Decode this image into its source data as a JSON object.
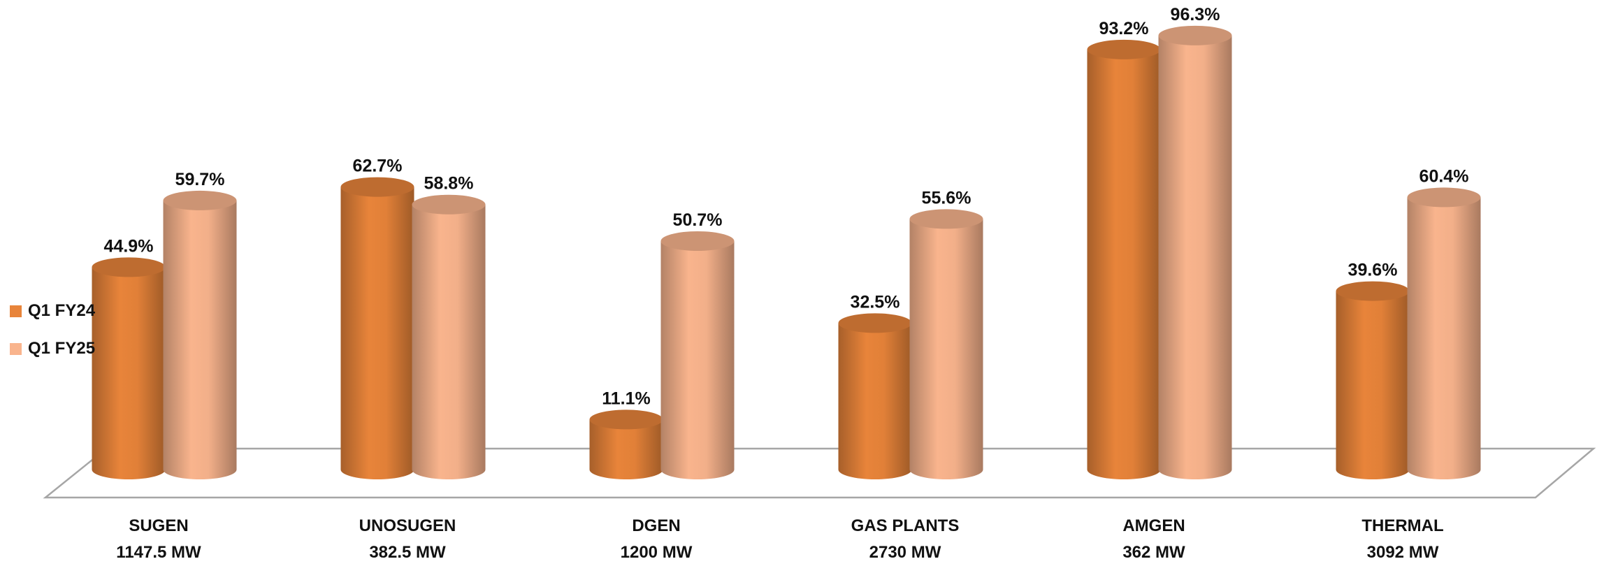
{
  "chart_data": {
    "type": "bar",
    "style": "3d-cylinder",
    "categories": [
      "SUGEN",
      "UNOSUGEN",
      "DGEN",
      "GAS PLANTS",
      "AMGEN",
      "THERMAL"
    ],
    "category_capacities": [
      "1147.5 MW",
      "382.5 MW",
      "1200 MW",
      "2730 MW",
      "362 MW",
      "3092 MW"
    ],
    "series": [
      {
        "name": "Q1 FY24",
        "color": "#E8843A",
        "values": [
          44.9,
          62.7,
          11.1,
          32.5,
          93.2,
          39.6
        ],
        "labels": [
          "44.9%",
          "62.7%",
          "11.1%",
          "32.5%",
          "93.2%",
          "39.6%"
        ]
      },
      {
        "name": "Q1 FY25",
        "color": "#F9B48D",
        "values": [
          59.7,
          58.8,
          50.7,
          55.6,
          96.3,
          60.4
        ],
        "labels": [
          "59.7%",
          "58.8%",
          "50.7%",
          "55.6%",
          "96.3%",
          "60.4%"
        ]
      }
    ],
    "ylim": [
      0,
      100
    ],
    "grid": false,
    "legend_position": "left",
    "title": "",
    "xlabel": "",
    "ylabel": ""
  },
  "legend": {
    "items": [
      {
        "label": "Q1 FY24",
        "color": "#E8843A"
      },
      {
        "label": "Q1 FY25",
        "color": "#F9B48D"
      }
    ]
  }
}
